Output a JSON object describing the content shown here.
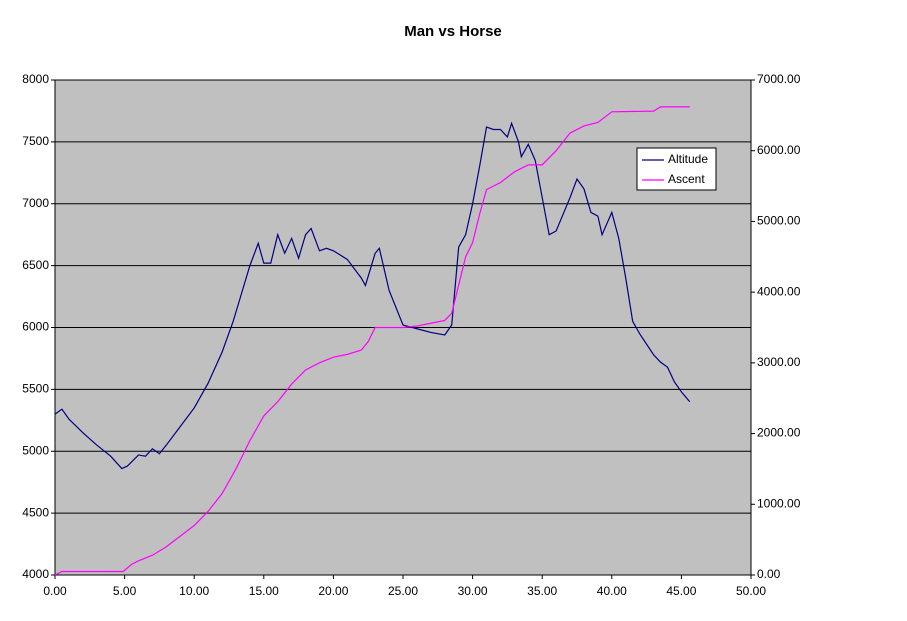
{
  "chart_data": {
    "type": "line",
    "title": "Man vs Horse",
    "xlim": [
      0,
      50
    ],
    "xticks": [
      {
        "value": 0,
        "label": "0.00"
      },
      {
        "value": 5,
        "label": "5.00"
      },
      {
        "value": 10,
        "label": "10.00"
      },
      {
        "value": 15,
        "label": "15.00"
      },
      {
        "value": 20,
        "label": "20.00"
      },
      {
        "value": 25,
        "label": "25.00"
      },
      {
        "value": 30,
        "label": "30.00"
      },
      {
        "value": 35,
        "label": "35.00"
      },
      {
        "value": 40,
        "label": "40.00"
      },
      {
        "value": 45,
        "label": "45.00"
      },
      {
        "value": 50,
        "label": "50.00"
      }
    ],
    "ylim": [
      4000,
      8000
    ],
    "yticks": [
      4000,
      4500,
      5000,
      5500,
      6000,
      6500,
      7000,
      7500,
      8000
    ],
    "y2lim": [
      0,
      7000
    ],
    "y2ticks": [
      {
        "value": 0,
        "label": "0.00"
      },
      {
        "value": 1000,
        "label": "1000.00"
      },
      {
        "value": 2000,
        "label": "2000.00"
      },
      {
        "value": 3000,
        "label": "3000.00"
      },
      {
        "value": 4000,
        "label": "4000.00"
      },
      {
        "value": 5000,
        "label": "5000.00"
      },
      {
        "value": 6000,
        "label": "6000.00"
      },
      {
        "value": 7000,
        "label": "7000.00"
      }
    ],
    "grid": true,
    "legend": "right",
    "series": [
      {
        "name": "Altitude",
        "color": "#000080",
        "x": [
          0,
          0.5,
          1,
          2,
          3,
          4,
          4.8,
          5.2,
          6,
          6.5,
          7,
          7.5,
          8,
          9,
          10,
          11,
          12,
          12.8,
          13.2,
          14,
          14.6,
          15,
          15.5,
          16,
          16.5,
          17,
          17.5,
          18,
          18.4,
          19,
          19.5,
          20,
          21,
          22,
          22.3,
          23,
          23.3,
          24,
          25,
          26,
          27,
          28,
          28.5,
          29,
          29.5,
          30,
          30.5,
          31,
          31.5,
          32,
          32.5,
          32.8,
          33.3,
          33.5,
          34,
          34.5,
          35,
          35.5,
          36,
          37,
          37.5,
          38,
          38.5,
          39,
          39.3,
          40,
          40.5,
          41,
          41.5,
          42,
          43,
          43.5,
          44,
          44.5,
          45,
          45.6
        ],
        "values": [
          5300,
          5340,
          5260,
          5150,
          5050,
          4960,
          4860,
          4880,
          4970,
          4960,
          5020,
          4980,
          5050,
          5200,
          5350,
          5550,
          5800,
          6050,
          6200,
          6500,
          6680,
          6520,
          6520,
          6750,
          6600,
          6720,
          6560,
          6750,
          6800,
          6620,
          6640,
          6620,
          6550,
          6400,
          6340,
          6600,
          6640,
          6300,
          6020,
          5990,
          5960,
          5940,
          6020,
          6650,
          6750,
          7000,
          7300,
          7620,
          7600,
          7600,
          7540,
          7650,
          7500,
          7380,
          7480,
          7350,
          7050,
          6750,
          6780,
          7050,
          7200,
          7120,
          6930,
          6900,
          6750,
          6930,
          6720,
          6400,
          6050,
          5950,
          5780,
          5720,
          5680,
          5560,
          5480,
          5400
        ]
      },
      {
        "name": "Ascent",
        "color": "#ff00ff",
        "axis": "y2",
        "x": [
          0,
          0.5,
          4.9,
          5.5,
          6,
          7,
          8,
          9,
          10,
          11,
          12,
          13,
          14,
          15,
          16,
          17,
          18,
          19,
          20,
          21,
          22,
          22.5,
          23,
          25,
          26,
          27,
          28,
          28.5,
          29,
          29.5,
          30,
          30.5,
          31,
          32,
          33,
          34,
          35,
          36,
          37,
          38,
          39,
          40,
          43,
          43.5,
          45.6
        ],
        "values": [
          0,
          50,
          50,
          150,
          200,
          280,
          400,
          550,
          700,
          900,
          1150,
          1500,
          1900,
          2250,
          2450,
          2700,
          2900,
          3000,
          3080,
          3120,
          3180,
          3300,
          3500,
          3500,
          3520,
          3560,
          3600,
          3700,
          4100,
          4500,
          4700,
          5100,
          5450,
          5550,
          5700,
          5800,
          5800,
          6000,
          6250,
          6350,
          6400,
          6550,
          6560,
          6620,
          6620
        ]
      }
    ]
  }
}
